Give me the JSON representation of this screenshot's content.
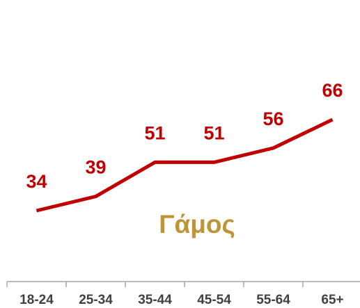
{
  "chart_data": {
    "type": "line",
    "categories": [
      "18-24",
      "25-34",
      "35-44",
      "45-54",
      "55-64",
      "65+"
    ],
    "values": [
      34,
      39,
      51,
      51,
      56,
      66
    ],
    "color": "#c00000",
    "annotation": "Γάμος"
  }
}
